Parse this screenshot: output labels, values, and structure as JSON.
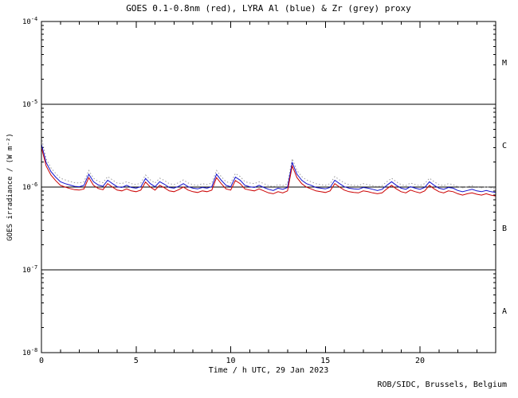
{
  "footer": "ROB/SIDC, Brussels, Belgium",
  "chart_data": {
    "type": "line",
    "title": "GOES 0.1-0.8nm (red), LYRA Al (blue) & Zr (grey) proxy",
    "xlabel": "Time / h UTC, 29 Jan 2023",
    "ylabel": "GOES irradiance / (W m⁻²)",
    "xlim": [
      0,
      24
    ],
    "ylim": [
      1e-08,
      0.0001
    ],
    "ylog": true,
    "grid": false,
    "axis_color": "#000000",
    "x_major_ticks": [
      0,
      5,
      10,
      15,
      20
    ],
    "y_tick_exponents": [
      -4,
      -5,
      -6,
      -7,
      -8
    ],
    "hlines": [
      1e-05,
      1e-06,
      1e-07
    ],
    "flare_classes": [
      {
        "label": "M",
        "range": [
          1e-05,
          0.0001
        ]
      },
      {
        "label": "C",
        "range": [
          1e-06,
          1e-05
        ]
      },
      {
        "label": "B",
        "range": [
          1e-07,
          1e-06
        ]
      },
      {
        "label": "A",
        "range": [
          1e-08,
          1e-07
        ]
      }
    ],
    "unit_multiplier": 1e-07,
    "x": [
      0,
      0.25,
      0.5,
      0.75,
      1,
      1.25,
      1.5,
      1.75,
      2,
      2.25,
      2.5,
      2.75,
      3,
      3.25,
      3.5,
      3.75,
      4,
      4.25,
      4.5,
      4.75,
      5,
      5.25,
      5.5,
      5.75,
      6,
      6.25,
      6.5,
      6.75,
      7,
      7.25,
      7.5,
      7.75,
      8,
      8.25,
      8.5,
      8.75,
      9,
      9.25,
      9.5,
      9.75,
      10,
      10.25,
      10.5,
      10.75,
      11,
      11.25,
      11.5,
      11.75,
      12,
      12.25,
      12.5,
      12.75,
      13,
      13.25,
      13.5,
      13.75,
      14,
      14.25,
      14.5,
      14.75,
      15,
      15.25,
      15.5,
      15.75,
      16,
      16.25,
      16.5,
      16.75,
      17,
      17.25,
      17.5,
      17.75,
      18,
      18.25,
      18.5,
      18.75,
      19,
      19.25,
      19.5,
      19.75,
      20,
      20.25,
      20.5,
      20.75,
      21,
      21.25,
      21.5,
      21.75,
      22,
      22.25,
      22.5,
      22.75,
      23,
      23.25,
      23.5,
      23.75,
      24
    ],
    "series": [
      {
        "name": "LYRA Zr proxy",
        "color": "#999999",
        "style": "dotted",
        "values": [
          40,
          22,
          17.1,
          14.6,
          12.8,
          12.2,
          11.7,
          11.3,
          11.2,
          11.6,
          15.9,
          12.8,
          11.7,
          11.3,
          13.4,
          12.2,
          11.2,
          11,
          11.6,
          11,
          10.7,
          11.2,
          14,
          12.2,
          11.2,
          12.8,
          12,
          11,
          10.7,
          11.3,
          12.2,
          11.2,
          10.7,
          10.5,
          11,
          10.7,
          11.2,
          15.9,
          13.4,
          11.6,
          11.2,
          14.6,
          13.4,
          11.6,
          11.2,
          11,
          11.6,
          11,
          10.4,
          10.1,
          10.7,
          10.4,
          11,
          22,
          15.9,
          13.4,
          12.2,
          11.6,
          11,
          10.7,
          10.5,
          11,
          13.4,
          12.2,
          11.2,
          10.7,
          10.5,
          10.4,
          11,
          10.7,
          10.4,
          10.1,
          10.4,
          11.6,
          12.8,
          11.6,
          10.7,
          10.4,
          11.2,
          10.7,
          10.4,
          11,
          12.8,
          11.6,
          10.7,
          10.4,
          11,
          10.7,
          10.1,
          9.8,
          10.1,
          10.4,
          10,
          9.8,
          10.1,
          9.8,
          9.5
        ]
      },
      {
        "name": "LYRA Al proxy",
        "color": "#1111cc",
        "style": "solid",
        "values": [
          33,
          19.8,
          15.4,
          13.2,
          11.6,
          11,
          10.6,
          10.2,
          10.1,
          10.5,
          14.3,
          11.6,
          10.6,
          10.2,
          12.1,
          11,
          10.1,
          9.9,
          10.5,
          9.9,
          9.7,
          10.1,
          12.7,
          11,
          10.1,
          11.6,
          10.8,
          9.9,
          9.7,
          10.2,
          11,
          10.1,
          9.7,
          9.5,
          9.9,
          9.7,
          10.1,
          14.3,
          12.1,
          10.5,
          10.1,
          13.2,
          12.1,
          10.5,
          10.1,
          9.9,
          10.5,
          9.9,
          9.4,
          9.1,
          9.7,
          9.4,
          9.9,
          19.8,
          14.3,
          12.1,
          11,
          10.5,
          9.9,
          9.7,
          9.5,
          9.9,
          12.1,
          11,
          10.1,
          9.7,
          9.5,
          9.4,
          9.9,
          9.7,
          9.4,
          9.1,
          9.4,
          10.5,
          11.6,
          10.5,
          9.7,
          9.4,
          10.1,
          9.7,
          9.4,
          9.9,
          11.6,
          10.5,
          9.7,
          9.4,
          9.9,
          9.7,
          9.1,
          8.8,
          9.1,
          9.4,
          9,
          8.8,
          9.1,
          8.8,
          8.6
        ]
      },
      {
        "name": "GOES 0.1-0.8nm",
        "color": "#cc0000",
        "style": "solid",
        "values": [
          30,
          18,
          14,
          12,
          10.5,
          10,
          9.6,
          9.3,
          9.2,
          9.5,
          13,
          10.5,
          9.6,
          9.3,
          11,
          10,
          9.2,
          9,
          9.5,
          9,
          8.8,
          9.2,
          11.5,
          10,
          9.2,
          10.5,
          9.8,
          9,
          8.8,
          9.3,
          10,
          9.2,
          8.8,
          8.6,
          9,
          8.8,
          9.2,
          13,
          11,
          9.5,
          9.2,
          12,
          11,
          9.5,
          9.2,
          9,
          9.5,
          9,
          8.5,
          8.3,
          8.8,
          8.5,
          9,
          18,
          13,
          11,
          10,
          9.5,
          9,
          8.8,
          8.6,
          9,
          11,
          10,
          9.2,
          8.8,
          8.6,
          8.5,
          9,
          8.8,
          8.5,
          8.3,
          8.5,
          9.5,
          10.5,
          9.5,
          8.8,
          8.5,
          9.2,
          8.8,
          8.5,
          9,
          10.5,
          9.5,
          8.8,
          8.5,
          9,
          8.8,
          8.3,
          8,
          8.3,
          8.5,
          8.2,
          8,
          8.3,
          8,
          7.8
        ]
      }
    ]
  }
}
